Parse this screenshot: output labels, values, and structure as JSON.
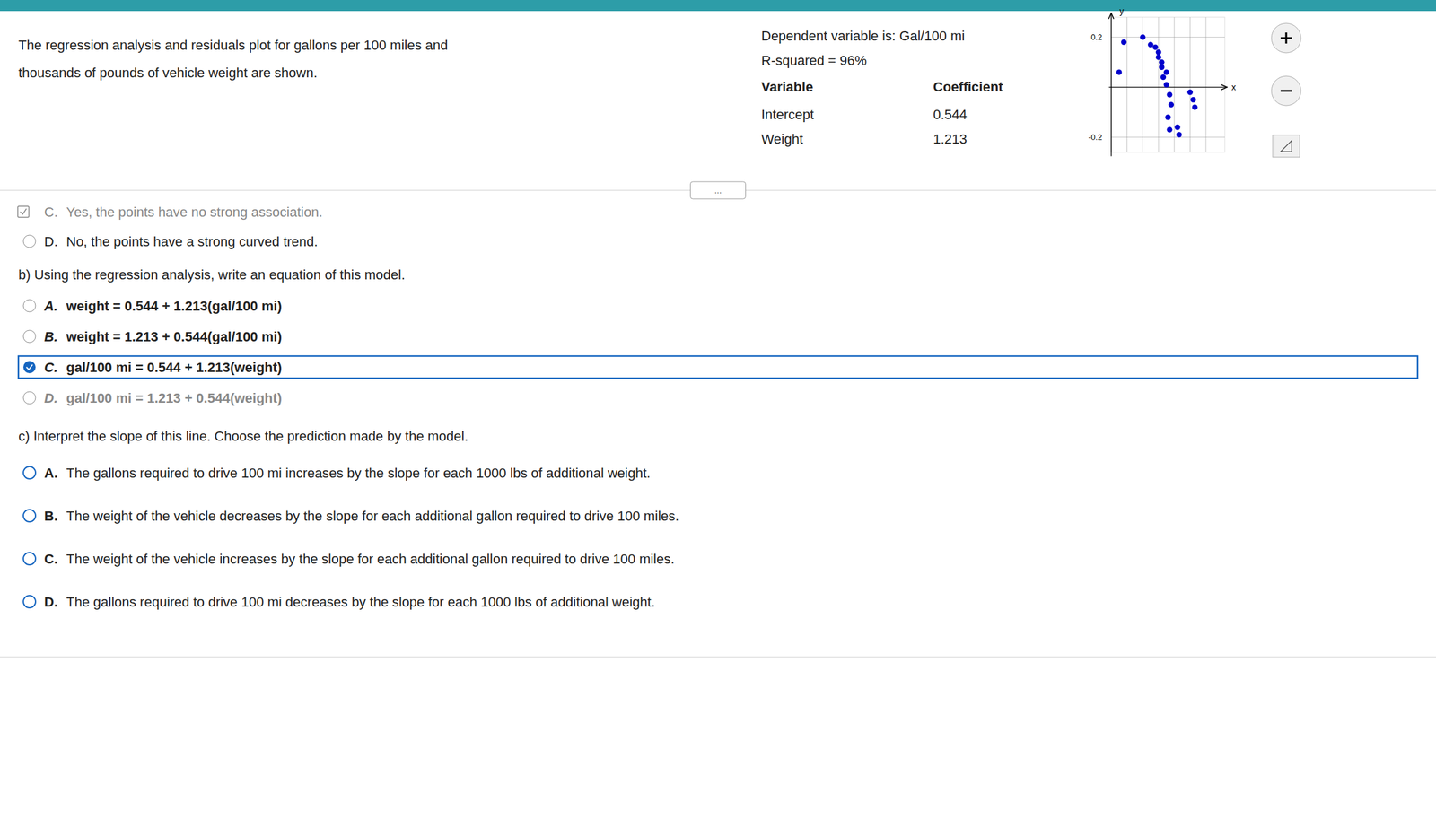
{
  "chart_data": {
    "type": "scatter",
    "x_label": "x",
    "y_label": "y",
    "x": [
      0.08,
      0.2,
      0.25,
      0.28,
      0.3,
      0.32,
      0.33,
      0.35,
      0.37,
      0.38,
      0.5,
      0.52,
      0.05,
      0.3,
      0.32,
      0.35,
      0.53,
      0.36,
      0.37,
      0.42,
      0.43
    ],
    "values": [
      0.18,
      0.2,
      0.17,
      0.16,
      0.12,
      0.08,
      0.04,
      0.01,
      -0.03,
      -0.07,
      -0.02,
      -0.05,
      0.06,
      0.14,
      0.1,
      0.06,
      -0.08,
      -0.12,
      -0.17,
      -0.16,
      -0.19
    ],
    "color": "#0000cc",
    "xlim": [
      0,
      0.72
    ],
    "ylim": [
      -0.26,
      0.28
    ],
    "xticks": [
      0,
      0.1,
      0.2,
      0.3,
      0.4,
      0.5,
      0.6
    ],
    "yticks": [
      -0.2,
      0.2
    ],
    "grid": true,
    "tick_labels": "y",
    "annotations": [
      "The regression analysis and residuals plot for gallons per 100 miles and",
      "thousands of pounds of vehicle weight are shown.",
      "Dependent variable is: Gal/100 mi",
      "R-squared = 96%",
      "Variable",
      "Coefficient",
      "Intercept",
      "0.544",
      "Weight",
      "1.213",
      "...",
      "C.",
      "Yes, the points have no strong association.",
      "D.",
      "No, the points have a strong curved trend.",
      "b) Using the regression analysis, write an equation of this model.",
      "A.",
      "weight = 0.544 + 1.213(gal/100 mi)",
      "B.",
      "weight = 1.213 + 0.544(gal/100 mi)",
      "C.",
      "gal/100 mi = 0.544 + 1.213(weight)",
      "D.",
      "gal/100 mi = 1.213 + 0.544(weight)",
      "c) Interpret the slope of this line. Choose the prediction made by the model.",
      "A.",
      "The gallons required to drive 100 mi increases by the slope for each 1000 lbs of additional weight.",
      "B.",
      "The weight of the vehicle decreases by the slope for each additional gallon required to drive 100 miles.",
      "C.",
      "The weight of the vehicle increases by the slope for each additional gallon required to drive 100 miles.",
      "D.",
      "The gallons required to drive 100 mi decreases by the slope for each 1000 lbs of additional weight."
    ]
  }
}
